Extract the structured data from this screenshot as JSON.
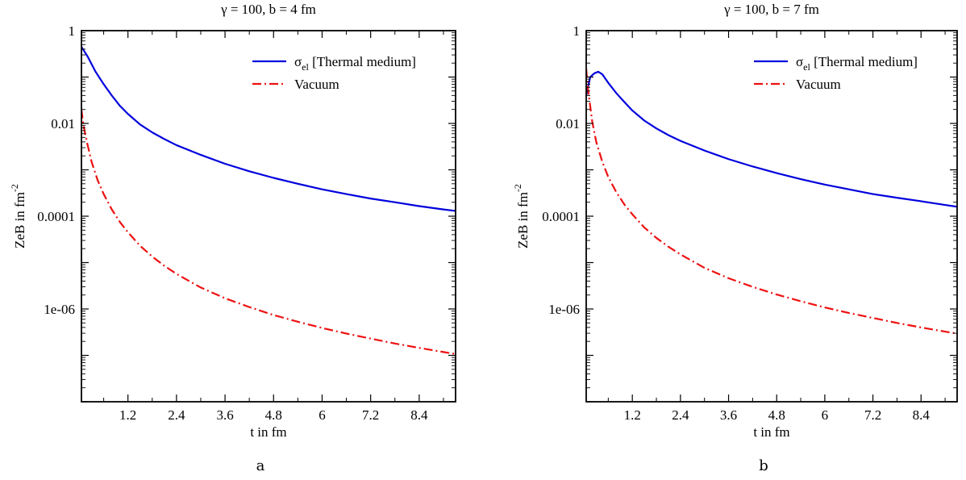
{
  "chart_data": [
    {
      "type": "line",
      "title": "γ = 100, b = 4 fm",
      "xlabel": "t in fm",
      "ylabel": "ZeB in fm",
      "ylabel_exp": "-2",
      "xlim": [
        0.05,
        9.3
      ],
      "ylim": [
        1e-08,
        1
      ],
      "yscale": "log",
      "x_ticks": [
        1.2,
        2.4,
        3.6,
        4.8,
        6,
        7.2,
        8.4
      ],
      "x_tick_labels": [
        "1.2",
        "2.4",
        "3.6",
        "4.8",
        "6",
        "7.2",
        "8.4"
      ],
      "y_ticks": [
        1,
        0.01,
        0.0001,
        1e-06
      ],
      "y_tick_labels": [
        "1",
        "0.01",
        "0.0001",
        "1e-06"
      ],
      "grid": false,
      "legend": "top-right",
      "panel_label": "a",
      "series": [
        {
          "name": "σ",
          "name_sub": "el",
          "name_suffix": " [Thermal medium]",
          "color": "#0000dd",
          "dash": "solid",
          "x": [
            0.05,
            0.2,
            0.4,
            0.6,
            0.8,
            1.0,
            1.2,
            1.5,
            1.8,
            2.1,
            2.4,
            3.0,
            3.6,
            4.2,
            4.8,
            5.4,
            6.0,
            6.6,
            7.2,
            7.8,
            8.4,
            9.0,
            9.3
          ],
          "y": [
            0.45,
            0.28,
            0.13,
            0.07,
            0.04,
            0.024,
            0.016,
            0.0095,
            0.0064,
            0.0046,
            0.0034,
            0.0021,
            0.00135,
            0.00093,
            0.00067,
            0.0005,
            0.00038,
            0.0003,
            0.00024,
            0.0002,
            0.000165,
            0.00014,
            0.00013
          ]
        },
        {
          "name": "Vacuum",
          "color": "#ee1111",
          "dash": "dashdot",
          "x": [
            0.05,
            0.1,
            0.2,
            0.3,
            0.45,
            0.6,
            0.8,
            1.0,
            1.2,
            1.5,
            1.8,
            2.1,
            2.4,
            3.0,
            3.6,
            4.2,
            4.8,
            5.4,
            6.0,
            6.6,
            7.2,
            7.8,
            8.4,
            9.0,
            9.3
          ],
          "y": [
            0.02,
            0.009,
            0.0035,
            0.0015,
            0.0006,
            0.0003,
            0.00014,
            7.5e-05,
            4.5e-05,
            2.3e-05,
            1.35e-05,
            8.5e-06,
            5.7e-06,
            2.9e-06,
            1.7e-06,
            1.1e-06,
            7.4e-07,
            5.3e-07,
            3.9e-07,
            2.95e-07,
            2.3e-07,
            1.8e-07,
            1.45e-07,
            1.18e-07,
            1.07e-07
          ]
        }
      ]
    },
    {
      "type": "line",
      "title": "γ = 100, b = 7 fm",
      "xlabel": "t in fm",
      "ylabel": "ZeB in fm",
      "ylabel_exp": "-2",
      "xlim": [
        0.05,
        9.3
      ],
      "ylim": [
        1e-08,
        1
      ],
      "yscale": "log",
      "x_ticks": [
        1.2,
        2.4,
        3.6,
        4.8,
        6,
        7.2,
        8.4
      ],
      "x_tick_labels": [
        "1.2",
        "2.4",
        "3.6",
        "4.8",
        "6",
        "7.2",
        "8.4"
      ],
      "y_ticks": [
        1,
        0.01,
        0.0001,
        1e-06
      ],
      "y_tick_labels": [
        "1",
        "0.01",
        "0.0001",
        "1e-06"
      ],
      "grid": false,
      "legend": "top-right",
      "panel_label": "b",
      "series": [
        {
          "name": "σ",
          "name_sub": "el",
          "name_suffix": " [Thermal medium]",
          "color": "#0000dd",
          "dash": "solid",
          "x": [
            0.05,
            0.15,
            0.25,
            0.35,
            0.45,
            0.6,
            0.8,
            1.0,
            1.2,
            1.5,
            1.8,
            2.1,
            2.4,
            3.0,
            3.6,
            4.2,
            4.8,
            5.4,
            6.0,
            6.6,
            7.2,
            7.8,
            8.4,
            9.0,
            9.3
          ],
          "y": [
            0.04,
            0.1,
            0.12,
            0.13,
            0.115,
            0.075,
            0.045,
            0.029,
            0.019,
            0.0115,
            0.0078,
            0.0056,
            0.0042,
            0.0026,
            0.0017,
            0.00118,
            0.00085,
            0.00063,
            0.00048,
            0.00038,
            0.0003,
            0.00025,
            0.00021,
            0.000175,
            0.00016
          ]
        },
        {
          "name": "Vacuum",
          "color": "#ee1111",
          "dash": "dashdot",
          "x": [
            0.05,
            0.1,
            0.2,
            0.3,
            0.45,
            0.6,
            0.8,
            1.0,
            1.2,
            1.5,
            1.8,
            2.1,
            2.4,
            3.0,
            3.6,
            4.2,
            4.8,
            5.4,
            6.0,
            6.6,
            7.2,
            7.8,
            8.4,
            9.0,
            9.3
          ],
          "y": [
            0.15,
            0.05,
            0.011,
            0.004,
            0.0015,
            0.0007,
            0.00033,
            0.00018,
            0.00011,
            5.7e-05,
            3.4e-05,
            2.2e-05,
            1.5e-05,
            7.7e-06,
            4.6e-06,
            3e-06,
            2.05e-06,
            1.47e-06,
            1.08e-06,
            8.2e-07,
            6.4e-07,
            5e-07,
            4e-07,
            3.25e-07,
            2.95e-07
          ]
        }
      ]
    }
  ]
}
